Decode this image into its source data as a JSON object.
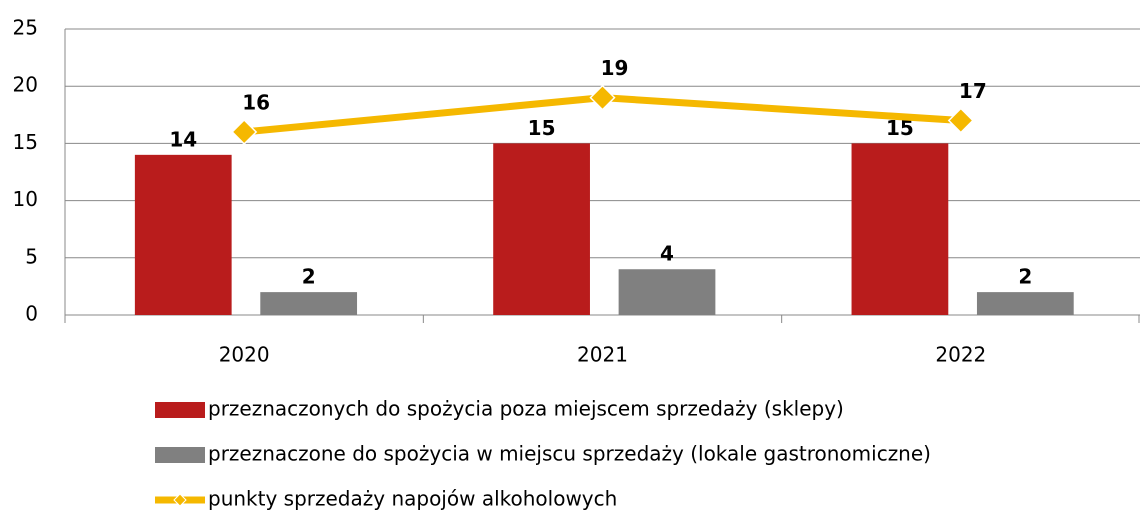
{
  "chart_data": {
    "type": "bar",
    "categories": [
      "2020",
      "2021",
      "2022"
    ],
    "series": [
      {
        "name": "przeznaczonych do spożycia poza miejscem sprzedaży (sklepy)",
        "color": "#b91c1c",
        "values": [
          14,
          15,
          15
        ]
      },
      {
        "name": "przeznaczone do spożycia w miejscu sprzedaży (lokale gastronomiczne)",
        "color": "#808080",
        "values": [
          2,
          4,
          2
        ]
      },
      {
        "name": "punkty sprzedaży napojów alkoholowych",
        "color": "#f5b800",
        "type": "line",
        "values": [
          16,
          19,
          17
        ]
      }
    ],
    "ylim": [
      0,
      25
    ],
    "yticks": [
      0,
      5,
      10,
      15,
      20,
      25
    ],
    "grid": true,
    "legend": "bottom"
  }
}
